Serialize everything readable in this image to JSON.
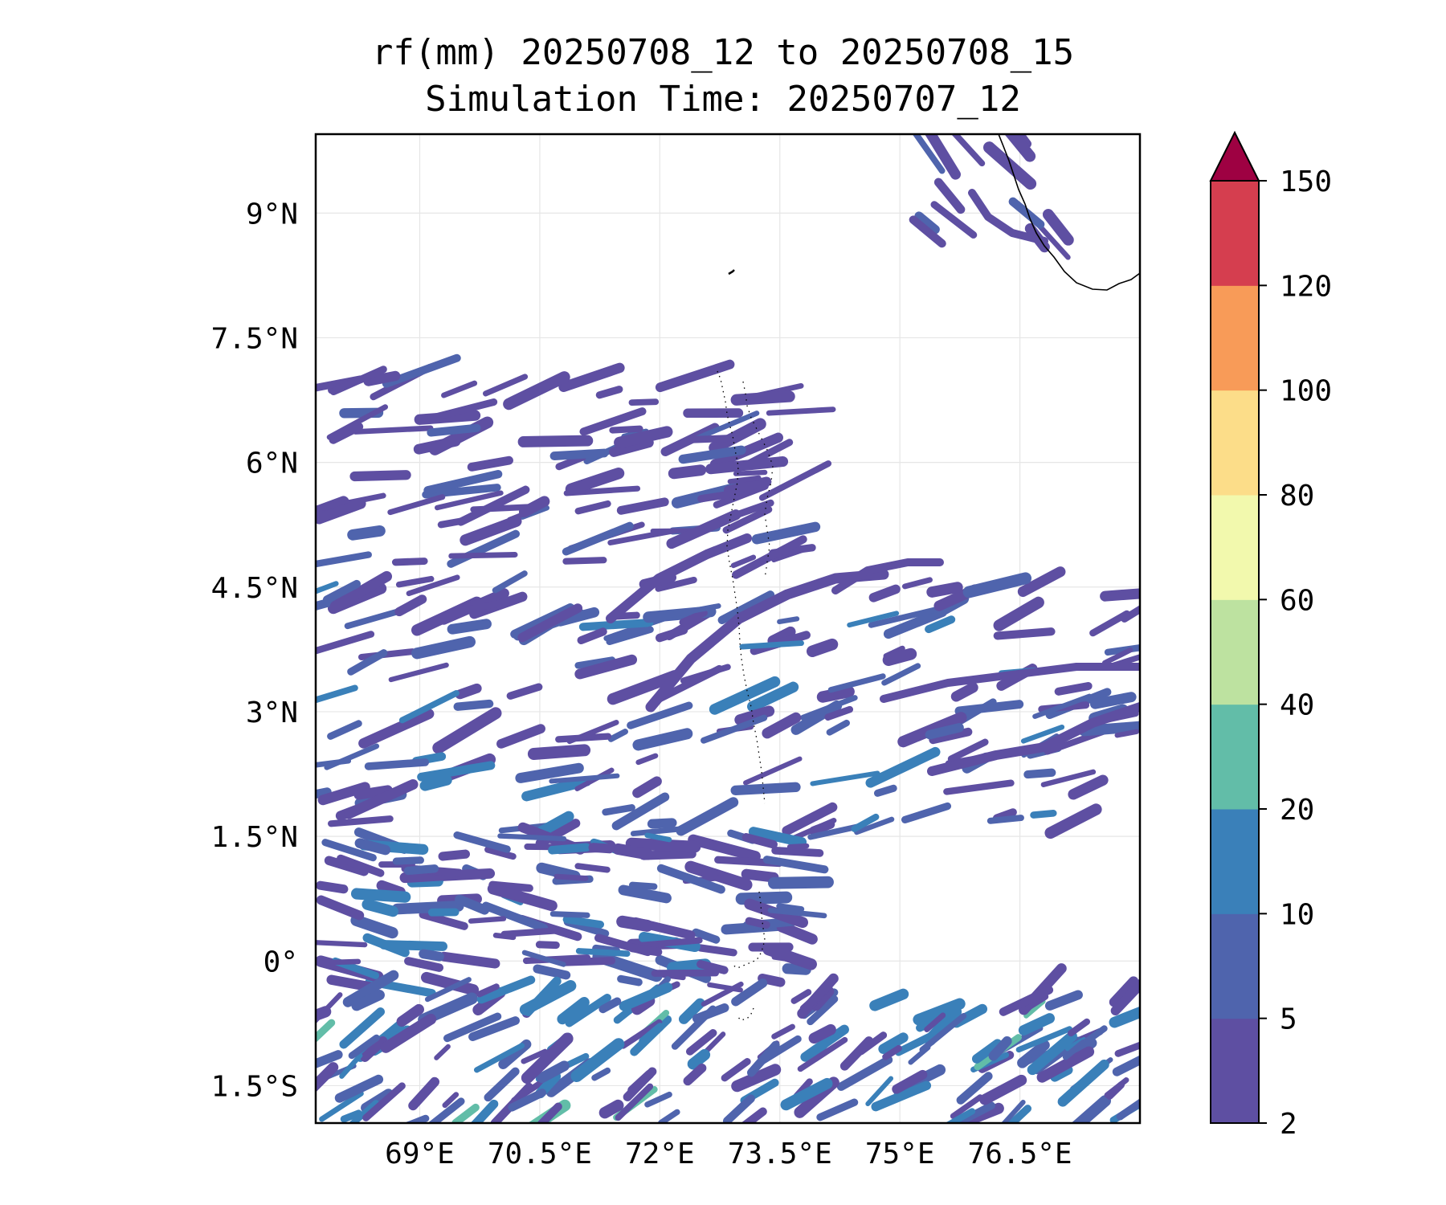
{
  "title": {
    "line1": "rf(mm) 20250708_12 to 20250708_15",
    "line2": "Simulation Time: 20250707_12"
  },
  "map": {
    "region": "Arabian Sea / Maldives",
    "lon_range": [
      67.7,
      78.0
    ],
    "lat_range": [
      -1.95,
      9.95
    ],
    "x_ticks": [
      {
        "value": 69.0,
        "label": "69°E"
      },
      {
        "value": 70.5,
        "label": "70.5°E"
      },
      {
        "value": 72.0,
        "label": "72°E"
      },
      {
        "value": 73.5,
        "label": "73.5°E"
      },
      {
        "value": 75.0,
        "label": "75°E"
      },
      {
        "value": 76.5,
        "label": "76.5°E"
      }
    ],
    "y_ticks": [
      {
        "value": 9.0,
        "label": "9°N"
      },
      {
        "value": 7.5,
        "label": "7.5°N"
      },
      {
        "value": 6.0,
        "label": "6°N"
      },
      {
        "value": 4.5,
        "label": "4.5°N"
      },
      {
        "value": 3.0,
        "label": "3°N"
      },
      {
        "value": 1.5,
        "label": "1.5°N"
      },
      {
        "value": 0.0,
        "label": "0°"
      },
      {
        "value": -1.5,
        "label": "1.5°S"
      }
    ],
    "gridlines": true,
    "coastline_color": "#000000"
  },
  "colorbar": {
    "position": "right",
    "extend": "max",
    "levels": [
      "2",
      "5",
      "10",
      "20",
      "40",
      "60",
      "80",
      "100",
      "120",
      "150"
    ],
    "colors": [
      "#5e4fa2",
      "#4f64ad",
      "#3a80b9",
      "#62bda8",
      "#bde2a0",
      "#f2f9ad",
      "#fcdd89",
      "#f89b58",
      "#d53e4f"
    ],
    "extend_color": "#9e0142"
  }
}
